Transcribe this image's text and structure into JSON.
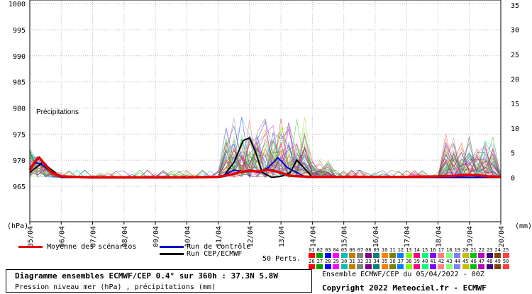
{
  "chart_data": {
    "type": "line",
    "title": "Diagramme ensembles ECMWF/CEP 0.4° sur 360h : 37.3N 5.8W",
    "subtitle": "Pression niveau mer (hPa) , précipitations (mm)",
    "left_axis": {
      "unit": "(hPa)",
      "ticks": [
        1000,
        995,
        990,
        985,
        980,
        975,
        970,
        965
      ],
      "range": [
        958.2,
        1000.7
      ]
    },
    "right_axis": {
      "unit": "(mm)",
      "ticks": [
        35,
        30,
        25,
        20,
        15,
        10,
        5,
        0
      ],
      "range": [
        -9,
        36
      ]
    },
    "x_ticks": [
      "05/04",
      "06/04",
      "07/04",
      "08/04",
      "09/04",
      "10/04",
      "11/04",
      "12/04",
      "13/04",
      "14/04",
      "15/04",
      "16/04",
      "17/04",
      "18/04",
      "19/04",
      "20/04"
    ],
    "precip_label": "Précipitations",
    "x_unit": "day index (0 = 05/04 00Z)",
    "mean_precip": {
      "x": [
        0,
        0.1,
        0.2,
        0.3,
        0.5,
        0.7,
        1,
        2,
        3,
        4,
        5,
        6,
        6.2,
        6.5,
        6.7,
        7,
        7.3,
        7.6,
        7.8,
        8,
        8.3,
        9,
        10,
        11,
        12,
        13,
        13.5,
        14,
        14.3,
        14.6,
        15
      ],
      "y": [
        1.5,
        2.5,
        3.5,
        4,
        2.5,
        1,
        0.2,
        0,
        0,
        0,
        0,
        0.1,
        0.3,
        0.7,
        1.1,
        1.3,
        1.2,
        1.6,
        1.3,
        0.9,
        0.3,
        0.1,
        0.1,
        0.1,
        0.1,
        0.2,
        0.3,
        0.5,
        0.4,
        0.2,
        0.1
      ]
    },
    "control_precip": {
      "x": [
        0,
        0.2,
        0.4,
        0.7,
        1,
        6,
        6.2,
        6.5,
        6.8,
        7,
        7.3,
        7.6,
        7.9,
        8.2,
        8.5,
        8.8,
        10,
        15
      ],
      "y": [
        2,
        3,
        2.5,
        1,
        0,
        0,
        0.5,
        1.5,
        1.2,
        1.5,
        1,
        2,
        4,
        2,
        1,
        0,
        0,
        0
      ]
    },
    "cep_precip": {
      "x": [
        0,
        0.2,
        0.4,
        0.7,
        1,
        6,
        6.2,
        6.5,
        6.8,
        7,
        7.2,
        7.4,
        7.7,
        8,
        8.3,
        8.5,
        8.8,
        9,
        10,
        15
      ],
      "y": [
        1,
        2,
        3,
        1.5,
        0,
        0,
        0.5,
        3,
        7.5,
        8,
        5,
        1,
        0,
        0.2,
        1,
        3.5,
        1.5,
        0,
        0,
        0
      ]
    },
    "perturbation_count": 50
  },
  "legend": {
    "mean": "Moyenne des scénarios",
    "control": "Run de contrôle",
    "cep": "Run CEP/ECMWF",
    "perts": "50 Perts."
  },
  "swatch_colors": [
    "#ff0000",
    "#00a000",
    "#0000ff",
    "#ff00ff",
    "#00c0c0",
    "#c08000",
    "#808080",
    "#800080",
    "#008080",
    "#ff8000",
    "#808000",
    "#0080ff",
    "#80ff00",
    "#ff0080",
    "#00ff80",
    "#8000ff",
    "#ff8080",
    "#80ff80",
    "#8080ff",
    "#c0c000",
    "#00c000",
    "#c000c0",
    "#400080",
    "#804000",
    "#ff4040"
  ],
  "swatch_numbers_top": [
    "01",
    "02",
    "03",
    "04",
    "05",
    "06",
    "07",
    "08",
    "09",
    "10",
    "11",
    "12",
    "13",
    "14",
    "15",
    "16",
    "17",
    "18",
    "19",
    "20",
    "21",
    "22",
    "23",
    "24",
    "25"
  ],
  "swatch_numbers_bottom": [
    "26",
    "27",
    "28",
    "29",
    "30",
    "31",
    "32",
    "33",
    "34",
    "35",
    "36",
    "37",
    "38",
    "39",
    "40",
    "41",
    "42",
    "43",
    "44",
    "45",
    "46",
    "47",
    "48",
    "49",
    "50"
  ],
  "run_info": "Ensemble ECMWF/CEP du 05/04/2022 - 00Z",
  "copyright": "Copyright 2022 Meteociel.fr - ECMWF"
}
